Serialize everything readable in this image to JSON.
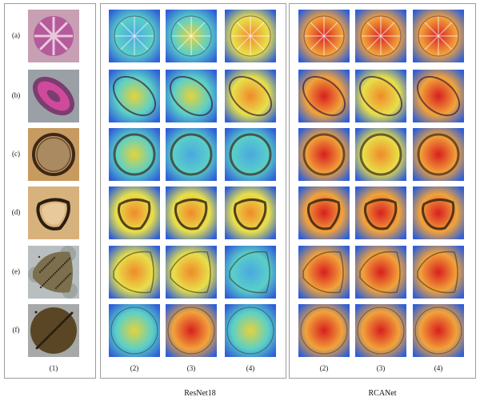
{
  "rows": [
    {
      "label": "(a)",
      "subject": "pink-radial-pollen"
    },
    {
      "label": "(b)",
      "subject": "elongated-pink-pollen"
    },
    {
      "label": "(c)",
      "subject": "brown-round-pollen"
    },
    {
      "label": "(d)",
      "subject": "triangular-ring-pollen"
    },
    {
      "label": "(e)",
      "subject": "lobed-textured-pollen"
    },
    {
      "label": "(f)",
      "subject": "dark-granular-round-pollen"
    }
  ],
  "columns": [
    "(1)",
    "(2)",
    "(3)",
    "(4)",
    "(2)",
    "(3)",
    "(4)"
  ],
  "groups": {
    "resnet": "ResNet18",
    "rcanet": "RCANet"
  },
  "colors": {
    "panel_border": "#9c9c9c",
    "heat_low": "#2c3fd6",
    "heat_high": "#d81f1f"
  }
}
